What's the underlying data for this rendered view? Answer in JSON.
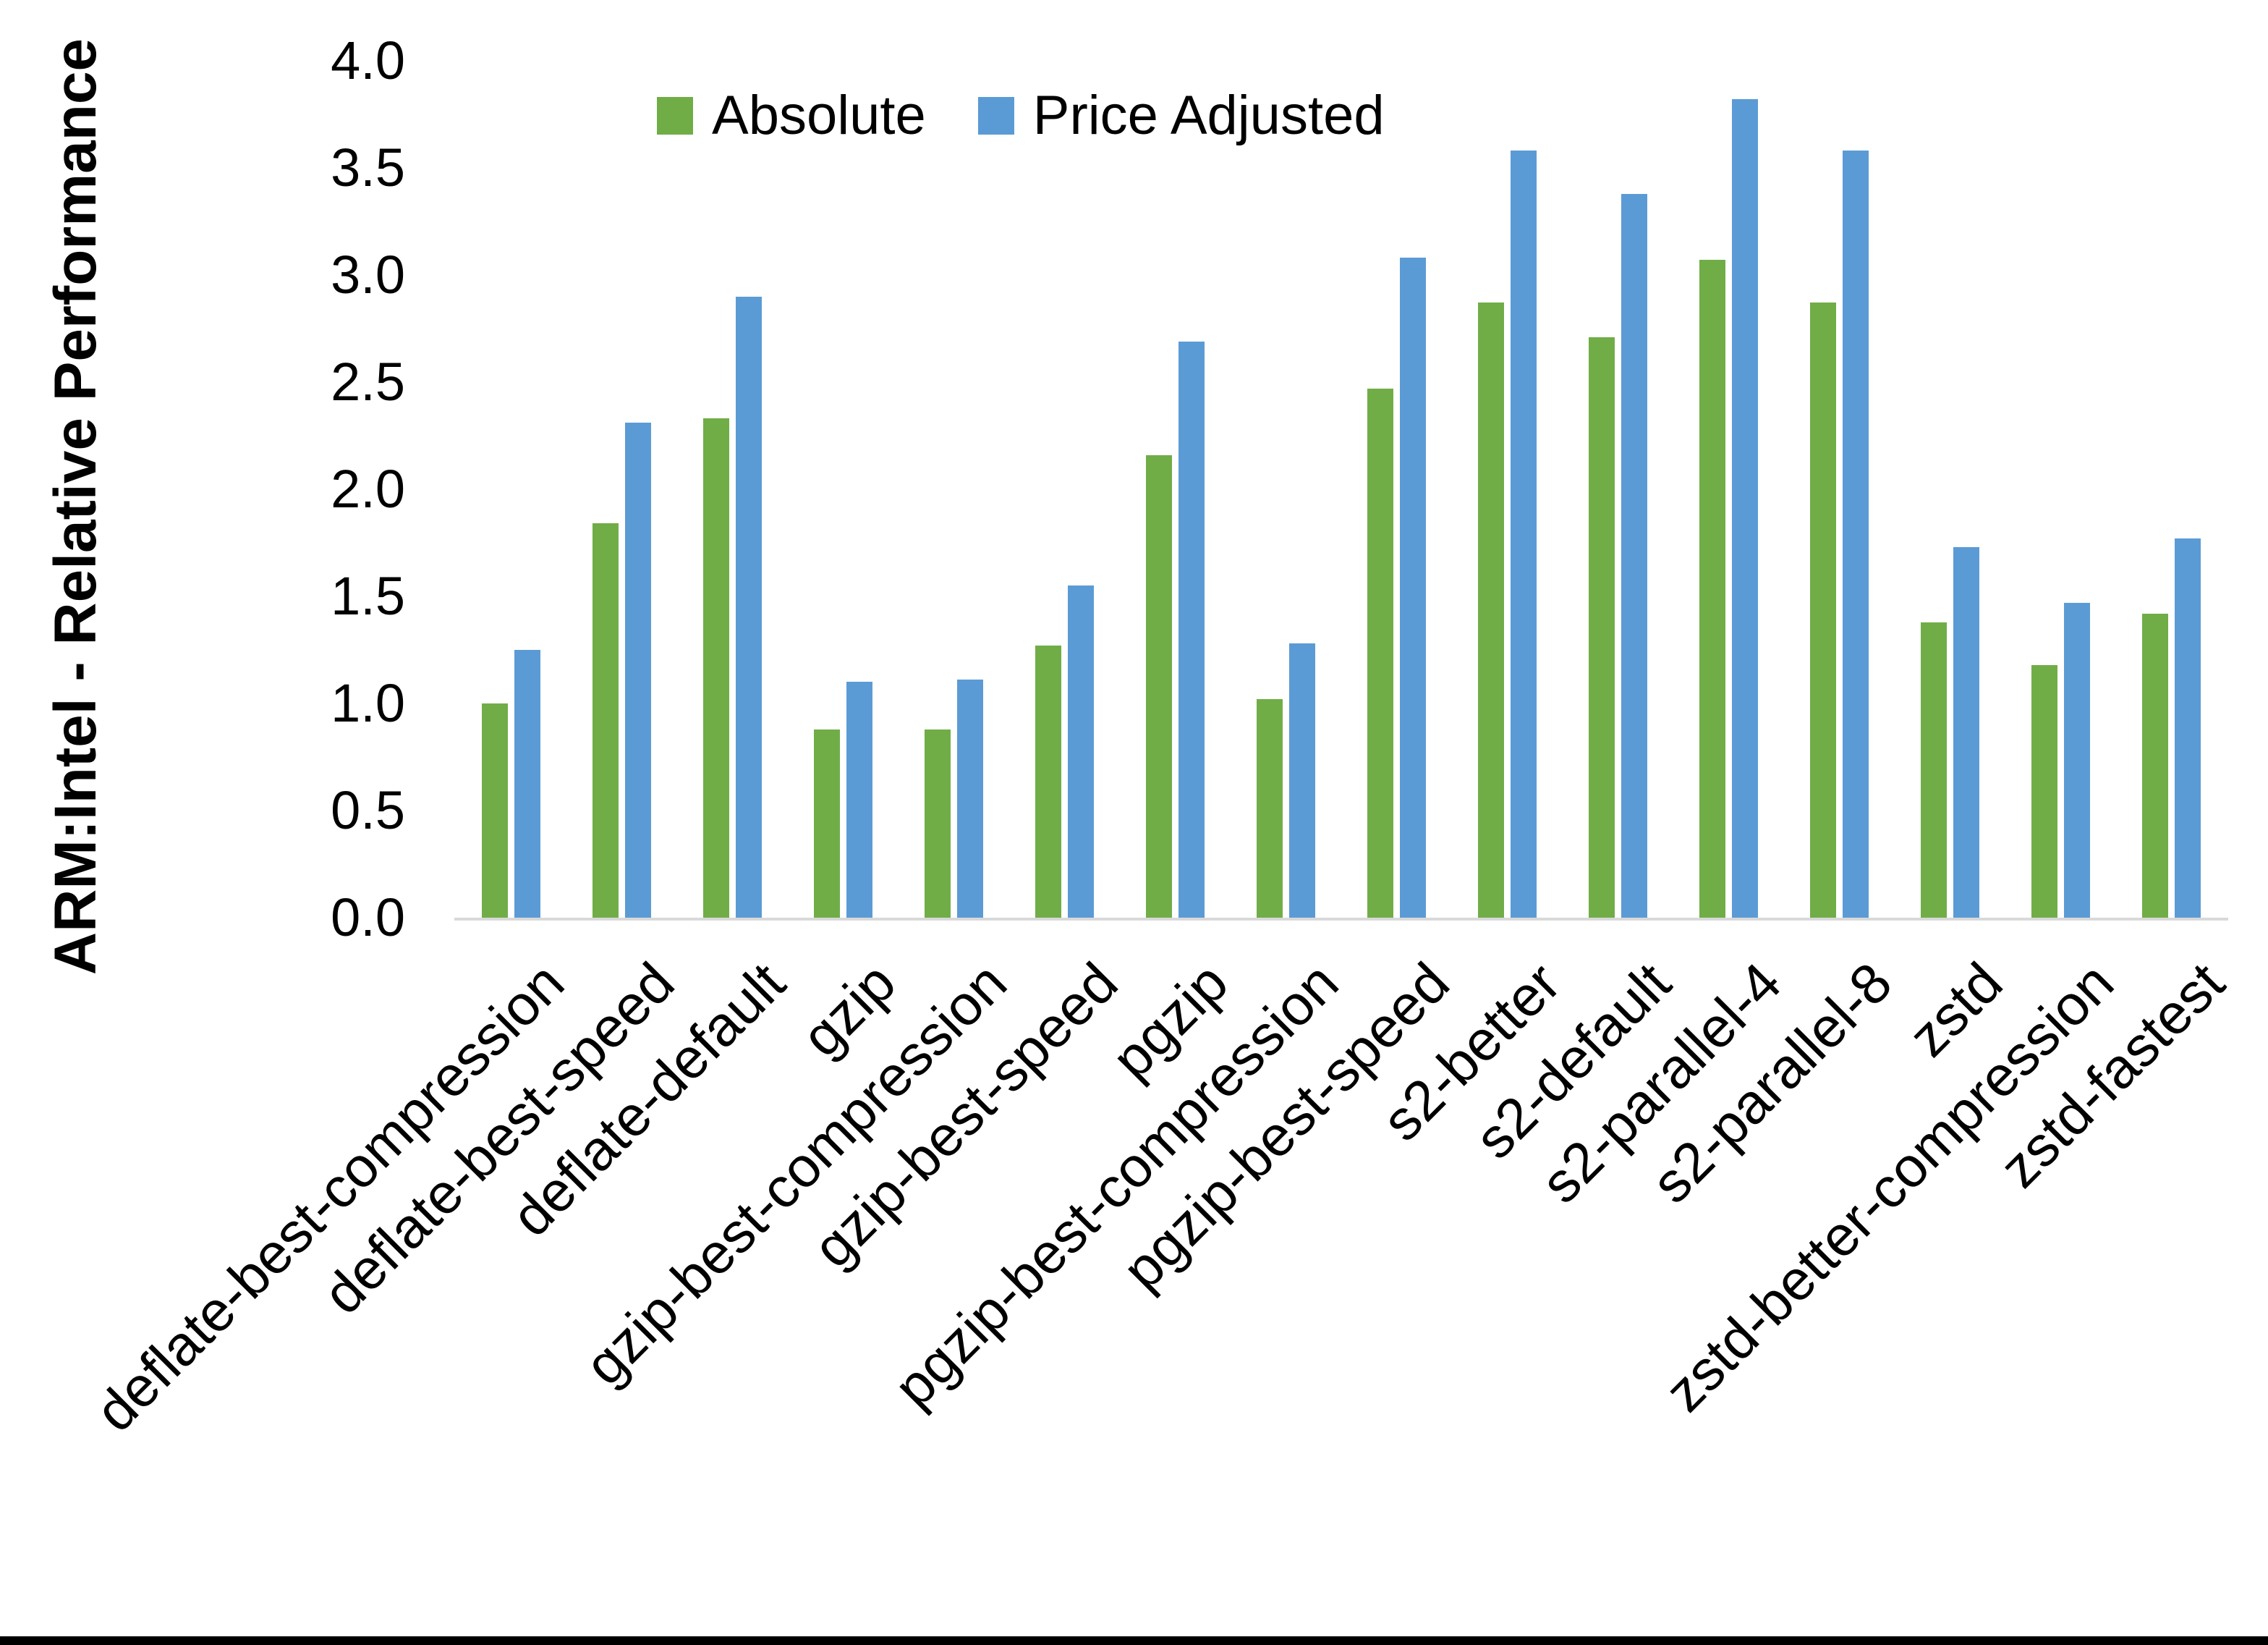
{
  "chart_data": {
    "type": "bar",
    "title": "",
    "xlabel": "",
    "ylabel": "ARM:Intel - Relative Performance",
    "ylim": [
      0.0,
      4.0
    ],
    "ytick_step": 0.5,
    "ytick_labels": [
      "0.0",
      "0.5",
      "1.0",
      "1.5",
      "2.0",
      "2.5",
      "3.0",
      "3.5",
      "4.0"
    ],
    "grid": false,
    "legend_position": "top-center",
    "categories": [
      "deflate-best-compression",
      "deflate-best-speed",
      "deflate-default",
      "gzip",
      "gzip-best-compression",
      "gzip-best-speed",
      "pgzip",
      "pgzip-best-compression",
      "pgzip-best-speed",
      "s2-better",
      "s2-default",
      "s2-parallel-4",
      "s2-parallel-8",
      "zstd",
      "zstd-better-compression",
      "zstd-fastest"
    ],
    "series": [
      {
        "name": "Absolute",
        "color": "#70AD47",
        "values": [
          1.0,
          1.84,
          2.33,
          0.88,
          0.88,
          1.27,
          2.16,
          1.02,
          2.47,
          2.87,
          2.71,
          3.07,
          2.87,
          1.38,
          1.18,
          1.42
        ]
      },
      {
        "name": "Price Adjusted",
        "color": "#5B9BD5",
        "values": [
          1.25,
          2.31,
          2.9,
          1.1,
          1.11,
          1.55,
          2.69,
          1.28,
          3.08,
          3.58,
          3.38,
          3.82,
          3.58,
          1.73,
          1.47,
          1.77
        ]
      }
    ]
  },
  "colors": {
    "background": "#FFFFFF",
    "text": "#000000",
    "axis_line": "#D9D9D9",
    "bottom_bar": "#000000"
  }
}
